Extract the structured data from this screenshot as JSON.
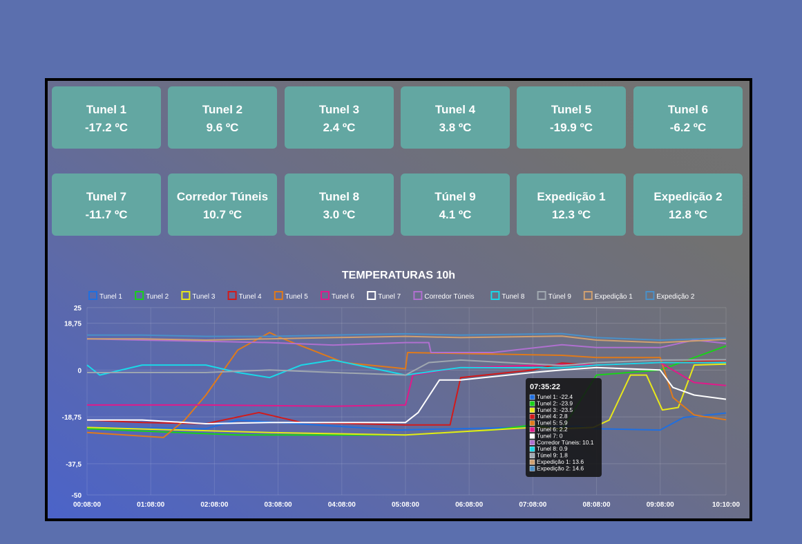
{
  "cards": [
    {
      "name": "Tunel 1",
      "value": "-17.2 ºC"
    },
    {
      "name": "Tunel 2",
      "value": "9.6 ºC"
    },
    {
      "name": "Tunel 3",
      "value": "2.4 ºC"
    },
    {
      "name": "Tunel 4",
      "value": "3.8 ºC"
    },
    {
      "name": "Tunel 5",
      "value": "-19.9 ºC"
    },
    {
      "name": "Tunel 6",
      "value": "-6.2 ºC"
    },
    {
      "name": "Tunel 7",
      "value": "-11.7 ºC"
    },
    {
      "name": "Corredor Túneis",
      "value": "10.7 ºC"
    },
    {
      "name": "Tunel 8",
      "value": "3.0 ºC"
    },
    {
      "name": "Túnel 9",
      "value": "4.1 ºC"
    },
    {
      "name": "Expedição 1",
      "value": "12.3 ºC"
    },
    {
      "name": "Expedição 2",
      "value": "12.8 ºC"
    }
  ],
  "colors": {
    "background": "#5b6fae",
    "card": "#63a7a2",
    "frame": "#000000"
  },
  "chart_data": {
    "type": "line",
    "title": "TEMPERATURAS 10h",
    "xlabel": "",
    "ylabel": "",
    "ylim": [
      -50,
      25
    ],
    "yticks": [
      "25",
      "18,75",
      "0",
      "-18,75",
      "-37,5",
      "-50"
    ],
    "ytick_values": [
      25,
      18.75,
      0,
      -18.75,
      -37.5,
      -50
    ],
    "xlim": [
      "00:08:00",
      "10:10:00"
    ],
    "xticks": [
      "00:08:00",
      "01:08:00",
      "02:08:00",
      "03:08:00",
      "04:08:00",
      "05:08:00",
      "06:08:00",
      "07:08:00",
      "08:08:00",
      "09:08:00",
      "10:10:00"
    ],
    "grid": true,
    "legend_position": "top",
    "series": [
      {
        "name": "Tunel 1",
        "color": "#1f6fe0",
        "x": [
          "00:08:00",
          "02:00:00",
          "02:30:00",
          "05:00:00",
          "07:50:00",
          "08:08:00",
          "09:08:00",
          "09:30:00",
          "10:10:00"
        ],
        "y": [
          -23,
          -23.5,
          -20,
          -24,
          -22.5,
          -23.5,
          -24,
          -19,
          -17.2
        ]
      },
      {
        "name": "Tunel 2",
        "color": "#19d219",
        "x": [
          "00:08:00",
          "02:30:00",
          "05:08:00",
          "06:30:00",
          "07:08:00",
          "07:35:22",
          "08:08:00",
          "09:08:00",
          "09:40:00",
          "10:10:00"
        ],
        "y": [
          -23.5,
          -26,
          -26,
          -24,
          -22,
          -23.9,
          -2,
          0,
          5,
          9.6
        ]
      },
      {
        "name": "Tunel 3",
        "color": "#e8e81a",
        "x": [
          "00:08:00",
          "03:00:00",
          "05:08:00",
          "07:08:00",
          "07:35:22",
          "08:05:00",
          "08:20:00",
          "08:40:00",
          "08:55:00",
          "09:10:00",
          "09:25:00",
          "09:40:00",
          "10:10:00"
        ],
        "y": [
          -23,
          -25,
          -26,
          -23,
          -23.5,
          -23,
          -20,
          -2,
          -2,
          -16,
          -15,
          2,
          2.4
        ]
      },
      {
        "name": "Tunel 4",
        "color": "#d21a1a",
        "x": [
          "00:08:00",
          "01:00:00",
          "02:00:00",
          "02:50:00",
          "03:30:00",
          "05:08:00",
          "05:50:00",
          "06:00:00",
          "07:08:00",
          "07:35:22",
          "08:08:00",
          "09:08:00",
          "10:10:00"
        ],
        "y": [
          -20,
          -21,
          -21.5,
          -17,
          -21,
          -22,
          -22,
          -3,
          0,
          2.8,
          2,
          3,
          3.8
        ]
      },
      {
        "name": "Tunel 5",
        "color": "#e07a1a",
        "x": [
          "00:08:00",
          "01:20:00",
          "01:40:00",
          "02:00:00",
          "02:30:00",
          "03:00:00",
          "03:10:00",
          "04:10:00",
          "05:08:00",
          "05:10:00",
          "07:35:22",
          "08:08:00",
          "09:08:00",
          "09:20:00",
          "09:40:00",
          "10:10:00"
        ],
        "y": [
          -25,
          -27,
          -20,
          -10,
          8,
          15,
          13,
          3,
          0.5,
          7,
          5.9,
          5,
          5,
          -11,
          -18,
          -19.9
        ]
      },
      {
        "name": "Tunel 6",
        "color": "#e01a8a",
        "x": [
          "00:08:00",
          "02:00:00",
          "04:00:00",
          "05:08:00",
          "05:15:00",
          "06:00:00",
          "07:35:22",
          "08:08:00",
          "09:08:00",
          "09:40:00",
          "10:10:00"
        ],
        "y": [
          -14,
          -14,
          -14.5,
          -14,
          -2,
          1,
          2.2,
          2,
          3,
          -5,
          -6.2
        ]
      },
      {
        "name": "Tunel 7",
        "color": "#ffffff",
        "x": [
          "00:08:00",
          "01:00:00",
          "02:00:00",
          "03:00:00",
          "04:00:00",
          "05:08:00",
          "05:20:00",
          "05:40:00",
          "06:00:00",
          "07:08:00",
          "07:35:22",
          "08:08:00",
          "09:08:00",
          "09:20:00",
          "09:40:00",
          "10:10:00"
        ],
        "y": [
          -20,
          -20,
          -21.5,
          -21,
          -21,
          -21,
          -17,
          -4,
          -4,
          -1,
          0,
          1,
          0,
          -7,
          -10,
          -11.7
        ]
      },
      {
        "name": "Corredor Túneis",
        "color": "#b070d0",
        "x": [
          "00:08:00",
          "01:00:00",
          "02:00:00",
          "03:00:00",
          "04:00:00",
          "05:08:00",
          "05:30:00",
          "05:32:00",
          "06:30:00",
          "07:35:22",
          "08:08:00",
          "09:08:00",
          "09:40:00",
          "10:10:00"
        ],
        "y": [
          12.5,
          12,
          11.5,
          11,
          10,
          11,
          11,
          7,
          7,
          10.1,
          9,
          9,
          12,
          10.7
        ]
      },
      {
        "name": "Tunel 8",
        "color": "#1ad8e8",
        "x": [
          "00:08:00",
          "00:20:00",
          "01:00:00",
          "02:00:00",
          "02:30:00",
          "03:00:00",
          "03:30:00",
          "04:00:00",
          "05:08:00",
          "06:00:00",
          "07:35:22",
          "08:08:00",
          "09:08:00",
          "10:10:00"
        ],
        "y": [
          2,
          -2,
          2,
          2,
          -1,
          -3,
          2,
          4,
          -2,
          1,
          0.9,
          2,
          3,
          3.0
        ]
      },
      {
        "name": "Túnel 9",
        "color": "#a0a8b0",
        "x": [
          "00:08:00",
          "01:00:00",
          "02:00:00",
          "03:00:00",
          "04:00:00",
          "05:08:00",
          "05:30:00",
          "06:00:00",
          "07:35:22",
          "08:08:00",
          "09:08:00",
          "10:10:00"
        ],
        "y": [
          -1,
          -1,
          -1,
          0,
          -1,
          -2,
          3,
          4,
          1.8,
          3,
          4,
          4.1
        ]
      },
      {
        "name": "Expedição 1",
        "color": "#d0a070",
        "x": [
          "00:08:00",
          "01:00:00",
          "02:00:00",
          "03:00:00",
          "04:00:00",
          "05:08:00",
          "06:00:00",
          "07:35:22",
          "08:08:00",
          "09:08:00",
          "10:10:00"
        ],
        "y": [
          12.5,
          12.5,
          12,
          12.5,
          13,
          13.5,
          13,
          13.6,
          12,
          11,
          12.3
        ]
      },
      {
        "name": "Expedição 2",
        "color": "#4a90c8",
        "x": [
          "00:08:00",
          "01:00:00",
          "02:00:00",
          "03:00:00",
          "04:00:00",
          "05:08:00",
          "06:00:00",
          "07:35:22",
          "08:08:00",
          "09:08:00",
          "10:10:00"
        ],
        "y": [
          14,
          14,
          13.5,
          13.5,
          14,
          14.5,
          14,
          14.6,
          13,
          12,
          12.8
        ]
      }
    ],
    "tooltip": {
      "time": "07:35:22",
      "lines": [
        "Tunel 1: -22.4",
        "Tunel 2: -23.9",
        "Tunel 3: -23.5",
        "Tunel 4: 2.8",
        "Tunel 5: 5.9",
        "Tunel 6: 2.2",
        "Tunel 7: 0",
        "Corredor Túneis: 10.1",
        "Tunel 8: 0.9",
        "Túnel 9: 1.8",
        "Expedição 1: 13.6",
        "Expedição 2: 14.6"
      ]
    }
  }
}
